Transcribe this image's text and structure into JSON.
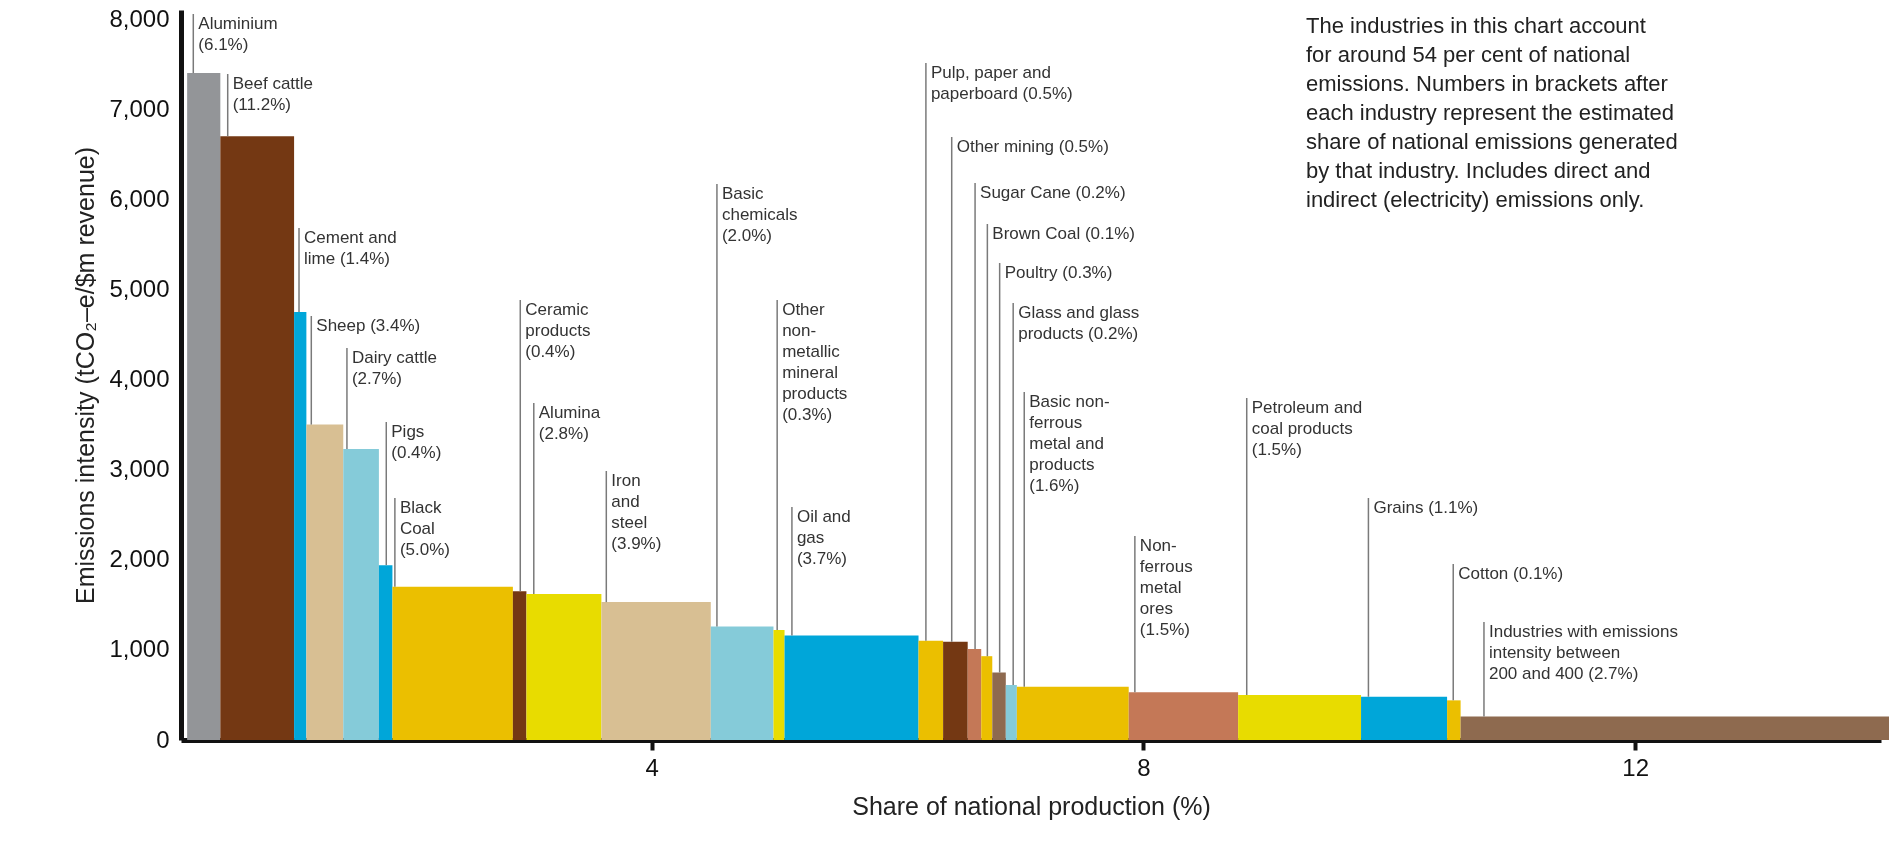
{
  "chart_data": {
    "type": "histogram",
    "xlabel": "Share of national production (%)",
    "ylabel": "Emissions intensity (tCO₂–e/$m revenue)",
    "bins": [
      0.22,
      0.49,
      1.09,
      1.19,
      1.49,
      1.78,
      1.89,
      2.87,
      2.98,
      3.59,
      4.48,
      4.99,
      5.08,
      6.17,
      6.37,
      6.57,
      6.68,
      6.77,
      6.88,
      6.97,
      7.88,
      8.77,
      9.77,
      10.47,
      10.58,
      14.07
    ],
    "values": [
      7400,
      6700,
      4750,
      3500,
      3230,
      1940,
      1700,
      1650,
      1620,
      1530,
      1260,
      1220,
      1160,
      1100,
      1090,
      1010,
      930,
      750,
      610,
      590,
      530,
      500,
      480,
      440,
      260
    ],
    "colors": [
      "#939598",
      "#743813",
      "#00a6d9",
      "#d8bf93",
      "#85cbd9",
      "#00a6d9",
      "#ebbf00",
      "#743813",
      "#e8dc00",
      "#d8bf93",
      "#85cbd9",
      "#e8dc00",
      "#00a6d9",
      "#ebbf00",
      "#743813",
      "#c47857",
      "#ebbf00",
      "#8e6a4f",
      "#85cbd9",
      "#ebbf00",
      "#c47857",
      "#e8dc00",
      "#00a6d9",
      "#ebbf00",
      "#8e6a4f"
    ],
    "xlim": [
      0.17,
      14.0
    ],
    "xticks": [
      4,
      8,
      12
    ],
    "ylim": [
      0,
      8100
    ],
    "yticks": [
      {
        "value": 0,
        "label": "0"
      },
      {
        "value": 1000,
        "label": "1,000"
      },
      {
        "value": 2000,
        "label": "2,000"
      },
      {
        "value": 3000,
        "label": "3,000"
      },
      {
        "value": 4000,
        "label": "4,000"
      },
      {
        "value": 5000,
        "label": "5,000"
      },
      {
        "value": 6000,
        "label": "6,000"
      },
      {
        "value": 7000,
        "label": "7,000"
      },
      {
        "value": 8000,
        "label": "8,000"
      }
    ],
    "annotations": [
      "The industries in this chart account\nfor around 54 per cent of national\nemissions. Numbers in brackets after\neach industry represent the estimated\nshare of national emissions generated\nby that industry. Includes direct and\nindirect (electricity) emissions only.",
      {
        "text": "Aluminium\n(6.1%)",
        "x": 0.27,
        "y": 7400
      },
      {
        "text": "Beef cattle\n(11.2%)",
        "x": 0.55,
        "y": 6700
      },
      {
        "text": "Cement and\nlime (1.4%)",
        "x": 1.13,
        "y": 4750
      },
      {
        "text": "Sheep (3.4%)",
        "x": 1.23,
        "y": 3500
      },
      {
        "text": "Dairy cattle\n(2.7%)",
        "x": 1.52,
        "y": 3230
      },
      {
        "text": "Pigs\n(0.4%)",
        "x": 1.84,
        "y": 1940
      },
      {
        "text": "Black\nCoal\n(5.0%)",
        "x": 1.91,
        "y": 1700
      },
      {
        "text": "Ceramic\nproducts\n(0.4%)",
        "x": 2.93,
        "y": 1650
      },
      {
        "text": "Alumina\n(2.8%)",
        "x": 3.04,
        "y": 1620
      },
      {
        "text": "Iron\nand\nsteel\n(3.9%)",
        "x": 3.63,
        "y": 1530
      },
      {
        "text": "Basic\nchemicals\n(2.0%)",
        "x": 4.53,
        "y": 1260
      },
      {
        "text": "Other\nnon-\nmetallic\nmineral\nproducts\n(0.3%)",
        "x": 5.02,
        "y": 1220
      },
      {
        "text": "Oil and\ngas\n(3.7%)",
        "x": 5.14,
        "y": 1160
      },
      {
        "text": "Pulp, paper and\npaperboard (0.5%)",
        "x": 6.23,
        "y": 1100
      },
      {
        "text": "Other mining (0.5%)",
        "x": 6.44,
        "y": 1090
      },
      {
        "text": "Sugar Cane (0.2%)",
        "x": 6.63,
        "y": 1010
      },
      {
        "text": "Brown Coal (0.1%)",
        "x": 6.73,
        "y": 930
      },
      {
        "text": "Poultry (0.3%)",
        "x": 6.83,
        "y": 750
      },
      {
        "text": "Glass and glass\nproducts (0.2%)",
        "x": 6.94,
        "y": 610
      },
      {
        "text": "Basic non-\nferrous\nmetal and\nproducts\n(1.6%)",
        "x": 7.03,
        "y": 590
      },
      {
        "text": "Non-\nferrous\nmetal\nores\n(1.5%)",
        "x": 7.93,
        "y": 530
      },
      {
        "text": "Petroleum and\ncoal products\n(1.5%)",
        "x": 8.84,
        "y": 500
      },
      {
        "text": "Grains (1.1%)",
        "x": 9.83,
        "y": 480
      },
      {
        "text": "Cotton (0.1%)",
        "x": 10.52,
        "y": 440
      },
      {
        "text": "Industries with emissions\nintensity between\n200 and 400 (2.7%)",
        "x": 10.77,
        "y": 260
      }
    ]
  }
}
